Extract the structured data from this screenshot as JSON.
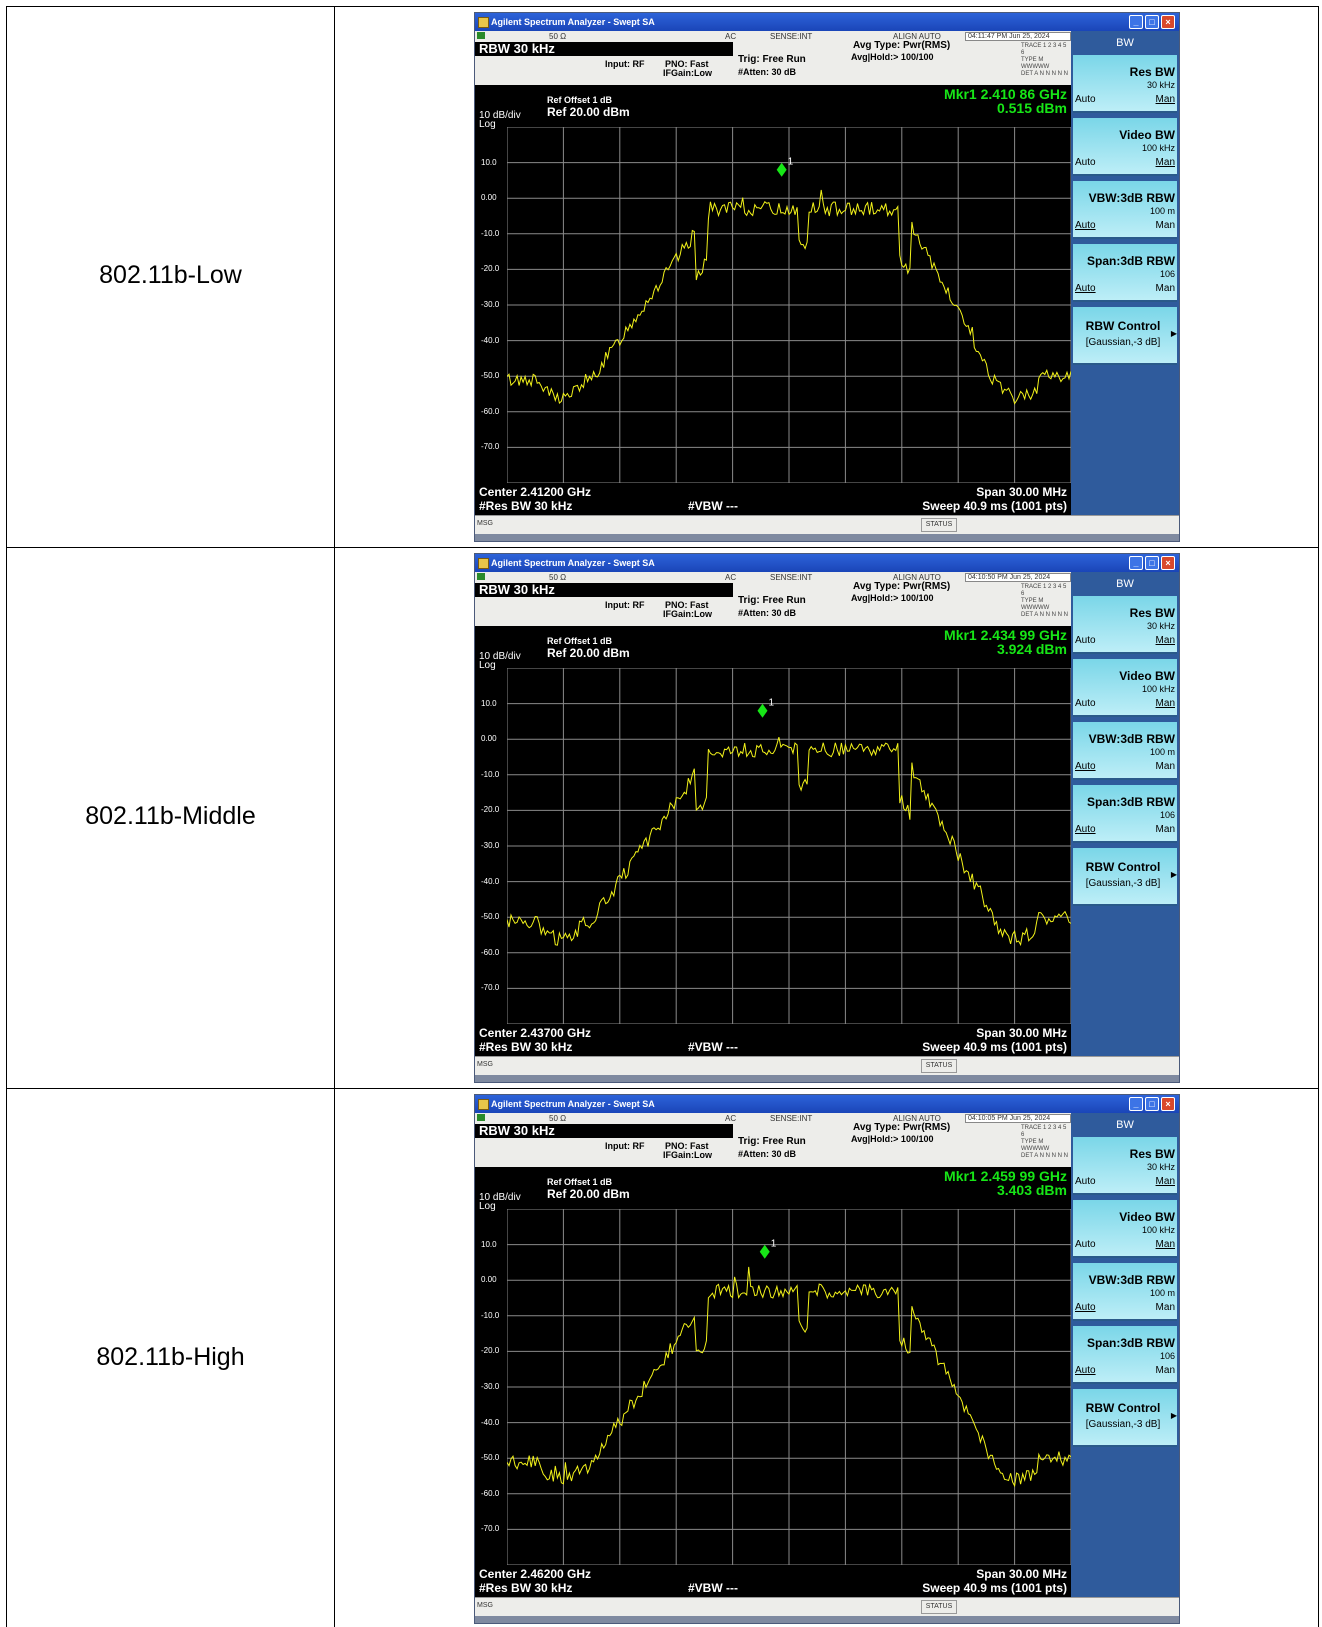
{
  "rows": [
    {
      "label": "802.11b-Low",
      "title": "Agilent Spectrum Analyzer - Swept SA",
      "impedance": "50 Ω",
      "coupling": "AC",
      "sense": "SENSE:INT",
      "align": "ALIGN AUTO",
      "timestamp": "04:11:47 PM Jun 25, 2024",
      "rbw_banner": "RBW  30 kHz",
      "input": "Input: RF",
      "pno": "PNO: Fast",
      "ifgain": "IFGain:Low",
      "trig": "Trig: Free Run",
      "atten": "#Atten: 30 dB",
      "avg_type": "Avg Type: Pwr(RMS)",
      "avg_hold": "Avg|Hold:> 100/100",
      "trace_row": "TRACE 1 2 3 4 5 6",
      "type_row": "TYPE M WWWWW",
      "det_row": "DET A N N N N N",
      "ref_offset": "Ref Offset 1 dB",
      "ref_level": "Ref 20.00 dBm",
      "scale": "10 dB/div",
      "scale_type": "Log",
      "marker_freq": "Mkr1 2.410 86 GHz",
      "marker_amp": "0.515 dBm",
      "marker_label": "1",
      "center": "Center 2.41200 GHz",
      "res_bw": "#Res BW 30 kHz",
      "vbw": "#VBW ---",
      "span": "Span 30.00 MHz",
      "sweep": "Sweep  40.9 ms (1001 pts)",
      "msg": "MSG",
      "status": "STATUS"
    },
    {
      "label": "802.11b-Middle",
      "title": "Agilent Spectrum Analyzer - Swept SA",
      "impedance": "50 Ω",
      "coupling": "AC",
      "sense": "SENSE:INT",
      "align": "ALIGN AUTO",
      "timestamp": "04:10:50 PM Jun 25, 2024",
      "rbw_banner": "RBW  30 kHz",
      "input": "Input: RF",
      "pno": "PNO: Fast",
      "ifgain": "IFGain:Low",
      "trig": "Trig: Free Run",
      "atten": "#Atten: 30 dB",
      "avg_type": "Avg Type: Pwr(RMS)",
      "avg_hold": "Avg|Hold:> 100/100",
      "trace_row": "TRACE 1 2 3 4 5 6",
      "type_row": "TYPE M WWWWW",
      "det_row": "DET A N N N N N",
      "ref_offset": "Ref Offset 1 dB",
      "ref_level": "Ref 20.00 dBm",
      "scale": "10 dB/div",
      "scale_type": "Log",
      "marker_freq": "Mkr1 2.434 99 GHz",
      "marker_amp": "3.924 dBm",
      "marker_label": "1",
      "center": "Center 2.43700 GHz",
      "res_bw": "#Res BW 30 kHz",
      "vbw": "#VBW ---",
      "span": "Span 30.00 MHz",
      "sweep": "Sweep  40.9 ms (1001 pts)",
      "msg": "MSG",
      "status": "STATUS"
    },
    {
      "label": "802.11b-High",
      "title": "Agilent Spectrum Analyzer - Swept SA",
      "impedance": "50 Ω",
      "coupling": "AC",
      "sense": "SENSE:INT",
      "align": "ALIGN AUTO",
      "timestamp": "04:10:05 PM Jun 25, 2024",
      "rbw_banner": "RBW  30 kHz",
      "input": "Input: RF",
      "pno": "PNO: Fast",
      "ifgain": "IFGain:Low",
      "trig": "Trig: Free Run",
      "atten": "#Atten: 30 dB",
      "avg_type": "Avg Type: Pwr(RMS)",
      "avg_hold": "Avg|Hold:> 100/100",
      "trace_row": "TRACE 1 2 3 4 5 6",
      "type_row": "TYPE M WWWWW",
      "det_row": "DET A N N N N N",
      "ref_offset": "Ref Offset 1 dB",
      "ref_level": "Ref 20.00 dBm",
      "scale": "10 dB/div",
      "scale_type": "Log",
      "marker_freq": "Mkr1 2.459 99 GHz",
      "marker_amp": "3.403 dBm",
      "marker_label": "1",
      "center": "Center 2.46200 GHz",
      "res_bw": "#Res BW 30 kHz",
      "vbw": "#VBW ---",
      "span": "Span 30.00 MHz",
      "sweep": "Sweep  40.9 ms (1001 pts)",
      "msg": "MSG",
      "status": "STATUS"
    }
  ],
  "y_ticks": [
    "10.0",
    "0.00",
    "-10.0",
    "-20.0",
    "-30.0",
    "-40.0",
    "-50.0",
    "-60.0",
    "-70.0"
  ],
  "softkeys": {
    "header": "BW",
    "res_bw_label": "Res BW",
    "res_bw_value": "30 kHz",
    "video_bw_label": "Video BW",
    "video_bw_value": "100 kHz",
    "vbw_rbw_label": "VBW:3dB RBW",
    "vbw_rbw_value": "100 m",
    "span_rbw_label": "Span:3dB RBW",
    "span_rbw_value": "106",
    "rbw_control_label": "RBW Control",
    "rbw_control_value": "[Gaussian,-3 dB]",
    "auto": "Auto",
    "man": "Man"
  },
  "colors": {
    "trace": "#f2f21a",
    "marker": "#17e617",
    "display_bg": "#000000",
    "softkey_panel": "#2f5b9c"
  }
}
